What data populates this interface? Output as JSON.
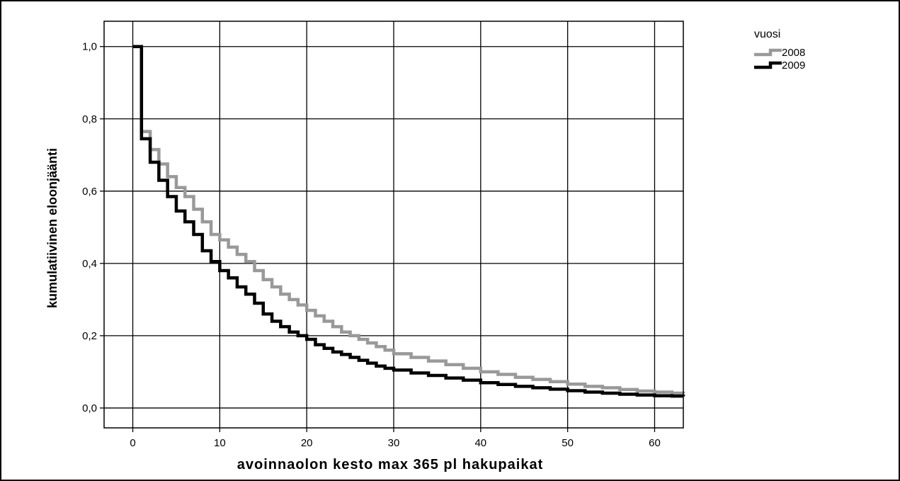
{
  "chart_data": {
    "type": "line",
    "title": "",
    "xlabel": "avoinnaolon kesto max 365 pl hakupaikat",
    "ylabel": "kumulatiivinen eloonjäänti",
    "xlim": [
      -3.3,
      63.3
    ],
    "ylim": [
      -0.055,
      1.07
    ],
    "x_ticks": [
      0,
      10,
      20,
      30,
      40,
      50,
      60
    ],
    "x_tick_labels": [
      "0",
      "10",
      "20",
      "30",
      "40",
      "50",
      "60"
    ],
    "y_ticks": [
      0.0,
      0.2,
      0.4,
      0.6,
      0.8,
      1.0
    ],
    "y_tick_labels": [
      "0,0",
      "0,2",
      "0,4",
      "0,6",
      "0,8",
      "1,0"
    ],
    "grid": true,
    "step": true,
    "legend": {
      "title": "vuosi",
      "position": "top-right"
    },
    "series": [
      {
        "name": "2008",
        "color": "#999999",
        "x": [
          0,
          1,
          2,
          3,
          4,
          5,
          6,
          7,
          8,
          9,
          10,
          11,
          12,
          13,
          14,
          15,
          16,
          17,
          18,
          19,
          20,
          21,
          22,
          23,
          24,
          25,
          26,
          27,
          28,
          29,
          30,
          32,
          34,
          36,
          38,
          40,
          42,
          44,
          46,
          48,
          50,
          52,
          54,
          56,
          58,
          60,
          62,
          63.3
        ],
        "y": [
          1.0,
          0.765,
          0.715,
          0.675,
          0.64,
          0.61,
          0.585,
          0.55,
          0.515,
          0.48,
          0.465,
          0.445,
          0.425,
          0.405,
          0.38,
          0.355,
          0.335,
          0.315,
          0.3,
          0.285,
          0.27,
          0.255,
          0.24,
          0.225,
          0.21,
          0.2,
          0.19,
          0.18,
          0.17,
          0.16,
          0.15,
          0.14,
          0.13,
          0.12,
          0.11,
          0.1,
          0.093,
          0.085,
          0.079,
          0.073,
          0.066,
          0.06,
          0.056,
          0.051,
          0.047,
          0.044,
          0.041,
          0.04
        ]
      },
      {
        "name": "2009",
        "color": "#000000",
        "x": [
          0,
          1,
          2,
          3,
          4,
          5,
          6,
          7,
          8,
          9,
          10,
          11,
          12,
          13,
          14,
          15,
          16,
          17,
          18,
          19,
          20,
          21,
          22,
          23,
          24,
          25,
          26,
          27,
          28,
          29,
          30,
          32,
          34,
          36,
          38,
          40,
          42,
          44,
          46,
          48,
          50,
          52,
          54,
          56,
          58,
          60,
          62,
          63.3
        ],
        "y": [
          1.0,
          0.745,
          0.68,
          0.63,
          0.585,
          0.545,
          0.515,
          0.48,
          0.435,
          0.405,
          0.38,
          0.36,
          0.335,
          0.315,
          0.29,
          0.26,
          0.24,
          0.225,
          0.21,
          0.2,
          0.19,
          0.175,
          0.165,
          0.155,
          0.148,
          0.14,
          0.132,
          0.124,
          0.116,
          0.11,
          0.105,
          0.097,
          0.09,
          0.083,
          0.077,
          0.07,
          0.065,
          0.06,
          0.056,
          0.052,
          0.048,
          0.044,
          0.041,
          0.038,
          0.036,
          0.034,
          0.033,
          0.032
        ]
      }
    ]
  }
}
